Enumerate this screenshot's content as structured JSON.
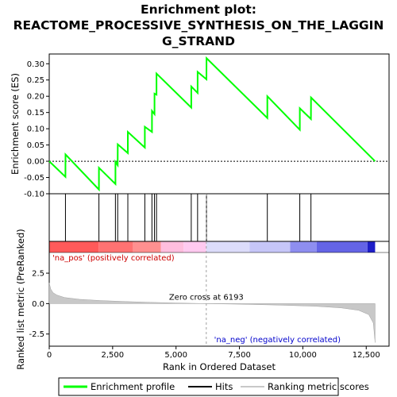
{
  "chart_data": {
    "type": "line",
    "title_line1": "Enrichment plot:",
    "title_line2": "REACTOME_PROCESSIVE_SYNTHESIS_ON_THE_LAGGIN",
    "title_line3": "G_STRAND",
    "es_panel": {
      "ylabel": "Enrichment score (ES)",
      "ylim": [
        -0.1,
        0.33
      ],
      "yticks": [
        "-0.10",
        "-0.05",
        "0.00",
        "0.05",
        "0.10",
        "0.15",
        "0.20",
        "0.25",
        "0.30"
      ],
      "ytick_values": [
        -0.1,
        -0.05,
        0.0,
        0.05,
        0.1,
        0.15,
        0.2,
        0.25,
        0.3
      ],
      "line_color": "#00ff00",
      "series": [
        {
          "x": 0,
          "y": 0.0
        },
        {
          "x": 640,
          "y": -0.048
        },
        {
          "x": 641,
          "y": 0.021
        },
        {
          "x": 1960,
          "y": -0.087
        },
        {
          "x": 1961,
          "y": -0.02
        },
        {
          "x": 2610,
          "y": -0.07
        },
        {
          "x": 2611,
          "y": -0.002
        },
        {
          "x": 2700,
          "y": -0.012
        },
        {
          "x": 2701,
          "y": 0.052
        },
        {
          "x": 3100,
          "y": 0.025
        },
        {
          "x": 3101,
          "y": 0.09
        },
        {
          "x": 3770,
          "y": 0.042
        },
        {
          "x": 3771,
          "y": 0.106
        },
        {
          "x": 4050,
          "y": 0.09
        },
        {
          "x": 4051,
          "y": 0.155
        },
        {
          "x": 4150,
          "y": 0.145
        },
        {
          "x": 4151,
          "y": 0.208
        },
        {
          "x": 4230,
          "y": 0.205
        },
        {
          "x": 4231,
          "y": 0.27
        },
        {
          "x": 5600,
          "y": 0.165
        },
        {
          "x": 5601,
          "y": 0.23
        },
        {
          "x": 5850,
          "y": 0.21
        },
        {
          "x": 5851,
          "y": 0.275
        },
        {
          "x": 6200,
          "y": 0.252
        },
        {
          "x": 6201,
          "y": 0.317
        },
        {
          "x": 8600,
          "y": 0.133
        },
        {
          "x": 8601,
          "y": 0.2
        },
        {
          "x": 9880,
          "y": 0.097
        },
        {
          "x": 9881,
          "y": 0.163
        },
        {
          "x": 10320,
          "y": 0.13
        },
        {
          "x": 10321,
          "y": 0.196
        },
        {
          "x": 12850,
          "y": 0.0
        }
      ]
    },
    "hits": [
      640,
      1960,
      2610,
      2700,
      3100,
      3770,
      4050,
      4150,
      4230,
      5600,
      5850,
      6200,
      8600,
      9880,
      10320
    ],
    "rank_panel": {
      "ylabel": "Ranked list metric (PreRanked)",
      "ylim": [
        -3.5,
        4.2
      ],
      "yticks": [
        "-2.5",
        "0.0",
        "2.5"
      ],
      "ytick_values": [
        -2.5,
        0.0,
        2.5
      ],
      "xlabel": "Rank in Ordered Dataset",
      "xlim": [
        0,
        13400
      ],
      "xticks": [
        "0",
        "2,500",
        "5,000",
        "7,500",
        "10,000",
        "12,500"
      ],
      "xtick_values": [
        0,
        2500,
        5000,
        7500,
        10000,
        12500
      ],
      "zero_cross_label": "Zero cross at 6193",
      "zero_cross": 6193,
      "pos_label": "'na_pos' (positively correlated)",
      "neg_label": "'na_neg' (negatively correlated)",
      "metric_curve": [
        {
          "x": 0,
          "y": 1.7
        },
        {
          "x": 60,
          "y": 1.2
        },
        {
          "x": 150,
          "y": 0.9
        },
        {
          "x": 300,
          "y": 0.7
        },
        {
          "x": 600,
          "y": 0.5
        },
        {
          "x": 1200,
          "y": 0.35
        },
        {
          "x": 2000,
          "y": 0.25
        },
        {
          "x": 3000,
          "y": 0.17
        },
        {
          "x": 4000,
          "y": 0.1
        },
        {
          "x": 5000,
          "y": 0.05
        },
        {
          "x": 6193,
          "y": 0.0
        },
        {
          "x": 7500,
          "y": -0.05
        },
        {
          "x": 9000,
          "y": -0.12
        },
        {
          "x": 10500,
          "y": -0.22
        },
        {
          "x": 11500,
          "y": -0.35
        },
        {
          "x": 12200,
          "y": -0.55
        },
        {
          "x": 12600,
          "y": -0.9
        },
        {
          "x": 12780,
          "y": -1.6
        },
        {
          "x": 12850,
          "y": -3.2
        }
      ]
    },
    "color_bar": {
      "segments": [
        {
          "x0": 0,
          "x1": 1950,
          "color": "#ff5a5a"
        },
        {
          "x0": 1950,
          "x1": 3300,
          "color": "#ff7272"
        },
        {
          "x0": 3300,
          "x1": 4400,
          "color": "#ff9090"
        },
        {
          "x0": 4400,
          "x1": 5300,
          "color": "#ffbede"
        },
        {
          "x0": 5300,
          "x1": 6190,
          "color": "#ffcaf0"
        },
        {
          "x0": 6190,
          "x1": 7900,
          "color": "#dcdcfa"
        },
        {
          "x0": 7900,
          "x1": 9500,
          "color": "#c6c6f8"
        },
        {
          "x0": 9500,
          "x1": 10550,
          "color": "#8e8ef0"
        },
        {
          "x0": 10550,
          "x1": 12550,
          "color": "#6464e6"
        },
        {
          "x0": 12550,
          "x1": 12850,
          "color": "#1e1ec8"
        }
      ]
    },
    "legend": {
      "items": [
        {
          "label": "Enrichment profile",
          "color": "#00ff00"
        },
        {
          "label": "Hits",
          "color": "#000000"
        },
        {
          "label": "Ranking metric scores",
          "color": "#c8c8c8"
        }
      ]
    }
  }
}
